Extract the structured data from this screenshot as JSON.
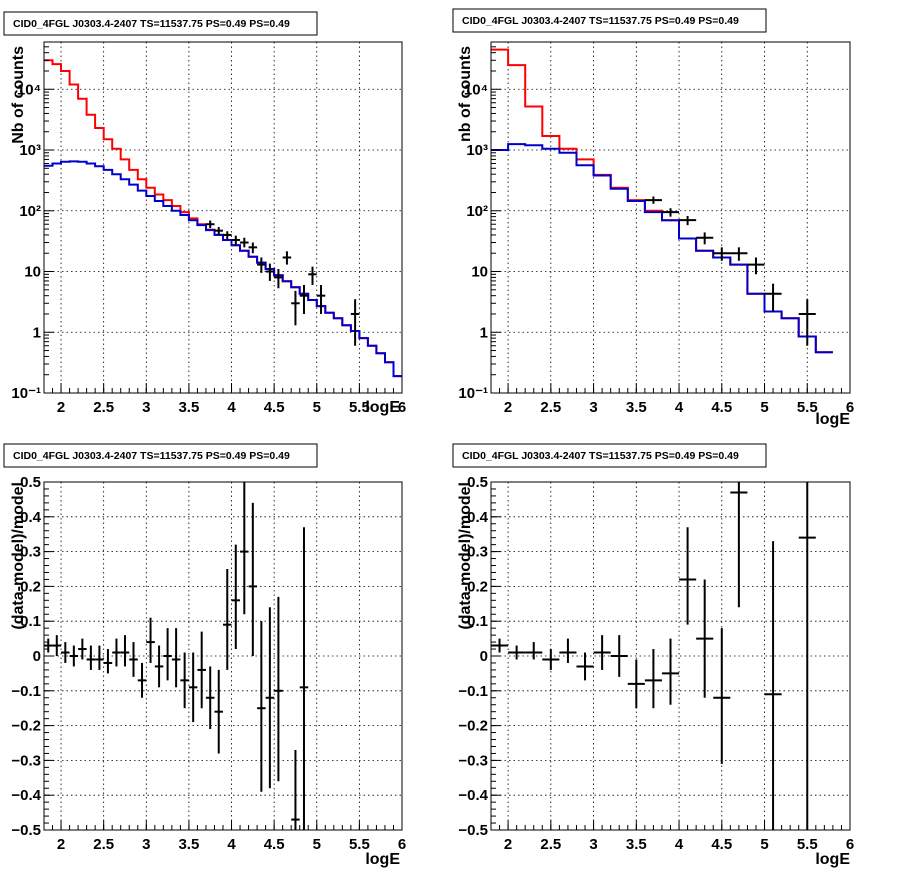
{
  "chart_data": [
    {
      "type": "histogram",
      "title": "CID0_4FGL J0303.4-2407 TS=11537.75 PS=0.49 PS=0.49",
      "xlabel": "logE",
      "ylabel": "Nb of counts",
      "xlim": [
        1.8,
        6.0
      ],
      "ylim": [
        0.1,
        60000
      ],
      "yscale": "log",
      "grid": true,
      "xticks": [
        {
          "v": 2,
          "t": "2"
        },
        {
          "v": 2.5,
          "t": "2.5"
        },
        {
          "v": 3,
          "t": "3"
        },
        {
          "v": 3.5,
          "t": "3.5"
        },
        {
          "v": 4,
          "t": "4"
        },
        {
          "v": 4.5,
          "t": "4.5"
        },
        {
          "v": 5,
          "t": "5"
        },
        {
          "v": 5.5,
          "t": "5.5"
        },
        {
          "v": 6,
          "t": "6"
        }
      ],
      "yticks": [
        {
          "v": 0.1,
          "t": "10⁻¹"
        },
        {
          "v": 1,
          "t": "1"
        },
        {
          "v": 10,
          "t": "10"
        },
        {
          "v": 100,
          "t": "10²"
        },
        {
          "v": 1000,
          "t": "10³"
        },
        {
          "v": 10000,
          "t": "10⁴"
        }
      ],
      "bin_edges": [
        1.8,
        1.9,
        2.0,
        2.1,
        2.2,
        2.3,
        2.4,
        2.5,
        2.6,
        2.7,
        2.8,
        2.9,
        3.0,
        3.1,
        3.2,
        3.3,
        3.4,
        3.5,
        3.6,
        3.7,
        3.8,
        3.9,
        4.0,
        4.1,
        4.2,
        4.3,
        4.4,
        4.5,
        4.6,
        4.7,
        4.8,
        4.9,
        5.0,
        5.1,
        5.2,
        5.3,
        5.4,
        5.5,
        5.6,
        5.7,
        5.8,
        5.9,
        6.0
      ],
      "series": [
        {
          "color": "#ff0000",
          "values": [
            30000,
            26000,
            20000,
            12000,
            7000,
            3800,
            2300,
            1500,
            1050,
            700,
            470,
            330,
            240,
            185,
            150,
            120,
            95,
            75,
            60,
            49,
            40,
            33,
            27,
            22,
            17.5,
            14,
            11,
            8.7,
            6.9,
            5.5,
            4.3,
            3.4,
            2.7,
            2.1,
            1.7,
            1.3,
            1.05,
            0.8,
            0.6,
            0.45,
            0.32,
            0.19
          ]
        },
        {
          "color": "#0000cc",
          "values": [
            550,
            600,
            640,
            650,
            640,
            600,
            540,
            470,
            400,
            330,
            270,
            215,
            175,
            145,
            120,
            100,
            85,
            70,
            58,
            48,
            40,
            33,
            27,
            22,
            17.5,
            14,
            11,
            8.7,
            6.9,
            5.5,
            4.3,
            3.4,
            2.7,
            2.1,
            1.7,
            1.3,
            1.05,
            0.8,
            0.6,
            0.45,
            0.32,
            0.19
          ]
        }
      ],
      "points": [
        {
          "x": 3.75,
          "y": 60,
          "lo": 52,
          "hi": 69
        },
        {
          "x": 3.85,
          "y": 47,
          "lo": 40,
          "hi": 54
        },
        {
          "x": 3.95,
          "y": 40,
          "lo": 34,
          "hi": 46
        },
        {
          "x": 4.05,
          "y": 33,
          "lo": 27,
          "hi": 39
        },
        {
          "x": 4.15,
          "y": 30,
          "lo": 25,
          "hi": 36
        },
        {
          "x": 4.25,
          "y": 25,
          "lo": 20,
          "hi": 30
        },
        {
          "x": 4.35,
          "y": 13,
          "lo": 9.5,
          "hi": 17
        },
        {
          "x": 4.45,
          "y": 10,
          "lo": 7,
          "hi": 13.5
        },
        {
          "x": 4.55,
          "y": 8,
          "lo": 5.3,
          "hi": 11
        },
        {
          "x": 4.65,
          "y": 17,
          "lo": 13,
          "hi": 21.5
        },
        {
          "x": 4.75,
          "y": 3,
          "lo": 1.3,
          "hi": 4.8
        },
        {
          "x": 4.85,
          "y": 4,
          "lo": 2,
          "hi": 6
        },
        {
          "x": 4.95,
          "y": 9,
          "lo": 6,
          "hi": 12
        },
        {
          "x": 5.05,
          "y": 4,
          "lo": 2,
          "hi": 6
        },
        {
          "x": 5.45,
          "y": 2,
          "lo": 0.6,
          "hi": 3.5
        }
      ]
    },
    {
      "type": "histogram",
      "title": "CID0_4FGL J0303.4-2407 TS=11537.75 PS=0.49 PS=0.49",
      "xlabel": "logE",
      "ylabel": "nb of counts",
      "xlim": [
        1.8,
        6.0
      ],
      "ylim": [
        0.1,
        60000
      ],
      "yscale": "log",
      "grid": true,
      "xticks": [
        {
          "v": 2,
          "t": "2"
        },
        {
          "v": 2.5,
          "t": "2.5"
        },
        {
          "v": 3,
          "t": "3"
        },
        {
          "v": 3.5,
          "t": "3.5"
        },
        {
          "v": 4,
          "t": "4"
        },
        {
          "v": 4.5,
          "t": "4.5"
        },
        {
          "v": 5,
          "t": "5"
        },
        {
          "v": 5.5,
          "t": "5.5"
        },
        {
          "v": 6,
          "t": "6"
        }
      ],
      "yticks": [
        {
          "v": 0.1,
          "t": "10⁻¹"
        },
        {
          "v": 1,
          "t": "1"
        },
        {
          "v": 10,
          "t": "10"
        },
        {
          "v": 100,
          "t": "10²"
        },
        {
          "v": 1000,
          "t": "10³"
        },
        {
          "v": 10000,
          "t": "10⁴"
        }
      ],
      "bin_edges": [
        1.8,
        2.0,
        2.2,
        2.4,
        2.6,
        2.8,
        3.0,
        3.2,
        3.4,
        3.6,
        3.8,
        4.0,
        4.2,
        4.4,
        4.6,
        4.8,
        5.0,
        5.2,
        5.4,
        5.6,
        5.8,
        6.0
      ],
      "series": [
        {
          "color": "#ff0000",
          "values": [
            45000,
            25000,
            5200,
            1700,
            1050,
            700,
            390,
            240,
            150,
            100,
            70,
            35,
            22,
            17,
            13,
            4.3,
            2.2,
            1.7,
            0.85,
            0.47
          ]
        },
        {
          "color": "#0000cc",
          "values": [
            1000,
            1250,
            1200,
            1050,
            900,
            560,
            380,
            230,
            145,
            95,
            70,
            35,
            22,
            17,
            13,
            4.3,
            2.2,
            1.7,
            0.85,
            0.47
          ]
        }
      ],
      "points": [
        {
          "x": 3.7,
          "y": 150,
          "lo": 130,
          "hi": 172
        },
        {
          "x": 3.9,
          "y": 95,
          "lo": 80,
          "hi": 110
        },
        {
          "x": 4.1,
          "y": 70,
          "lo": 58,
          "hi": 82
        },
        {
          "x": 4.3,
          "y": 36,
          "lo": 28,
          "hi": 44
        },
        {
          "x": 4.5,
          "y": 20,
          "lo": 15,
          "hi": 25
        },
        {
          "x": 4.7,
          "y": 20,
          "lo": 15,
          "hi": 25
        },
        {
          "x": 4.9,
          "y": 13,
          "lo": 9,
          "hi": 17
        },
        {
          "x": 5.1,
          "y": 4.3,
          "lo": 2.2,
          "hi": 6.3
        },
        {
          "x": 5.5,
          "y": 2,
          "lo": 0.6,
          "hi": 3.5
        }
      ]
    },
    {
      "type": "scatter",
      "title": "CID0_4FGL J0303.4-2407 TS=11537.75 PS=0.49 PS=0.49",
      "xlabel": "logE",
      "ylabel": "(data-model)/model",
      "xlim": [
        1.8,
        6.0
      ],
      "ylim": [
        -0.5,
        0.5
      ],
      "yscale": "linear",
      "grid": true,
      "xticks": [
        {
          "v": 2,
          "t": "2"
        },
        {
          "v": 2.5,
          "t": "2.5"
        },
        {
          "v": 3,
          "t": "3"
        },
        {
          "v": 3.5,
          "t": "3.5"
        },
        {
          "v": 4,
          "t": "4"
        },
        {
          "v": 4.5,
          "t": "4.5"
        },
        {
          "v": 5,
          "t": "5"
        },
        {
          "v": 5.5,
          "t": "5.5"
        },
        {
          "v": 6,
          "t": "6"
        }
      ],
      "yticks": [
        {
          "v": -0.5,
          "t": "−0.5"
        },
        {
          "v": -0.4,
          "t": "−0.4"
        },
        {
          "v": -0.3,
          "t": "−0.3"
        },
        {
          "v": -0.2,
          "t": "−0.2"
        },
        {
          "v": -0.1,
          "t": "−0.1"
        },
        {
          "v": 0,
          "t": "0"
        },
        {
          "v": 0.1,
          "t": "0.1"
        },
        {
          "v": 0.2,
          "t": "0.2"
        },
        {
          "v": 0.3,
          "t": "0.3"
        },
        {
          "v": 0.4,
          "t": "0.4"
        },
        {
          "v": 0.5,
          "t": "0.5"
        }
      ],
      "bin_width": 0.1,
      "points": [
        {
          "x": 1.85,
          "y": 0.03,
          "lo": 0.01,
          "hi": 0.05
        },
        {
          "x": 1.95,
          "y": 0.03,
          "lo": 0.0,
          "hi": 0.06
        },
        {
          "x": 2.05,
          "y": 0.01,
          "lo": -0.02,
          "hi": 0.04
        },
        {
          "x": 2.15,
          "y": 0.0,
          "lo": -0.03,
          "hi": 0.03
        },
        {
          "x": 2.25,
          "y": 0.02,
          "lo": -0.01,
          "hi": 0.05
        },
        {
          "x": 2.35,
          "y": -0.01,
          "lo": -0.04,
          "hi": 0.03
        },
        {
          "x": 2.45,
          "y": -0.01,
          "lo": -0.04,
          "hi": 0.03
        },
        {
          "x": 2.55,
          "y": -0.02,
          "lo": -0.05,
          "hi": 0.02
        },
        {
          "x": 2.65,
          "y": 0.01,
          "lo": -0.03,
          "hi": 0.05
        },
        {
          "x": 2.75,
          "y": 0.01,
          "lo": -0.03,
          "hi": 0.06
        },
        {
          "x": 2.85,
          "y": -0.01,
          "lo": -0.06,
          "hi": 0.04
        },
        {
          "x": 2.95,
          "y": -0.07,
          "lo": -0.12,
          "hi": -0.02
        },
        {
          "x": 3.05,
          "y": 0.04,
          "lo": -0.02,
          "hi": 0.11
        },
        {
          "x": 3.15,
          "y": -0.03,
          "lo": -0.09,
          "hi": 0.03
        },
        {
          "x": 3.25,
          "y": 0.0,
          "lo": -0.07,
          "hi": 0.08
        },
        {
          "x": 3.35,
          "y": -0.01,
          "lo": -0.09,
          "hi": 0.08
        },
        {
          "x": 3.45,
          "y": -0.07,
          "lo": -0.15,
          "hi": 0.01
        },
        {
          "x": 3.55,
          "y": -0.09,
          "lo": -0.19,
          "hi": 0.01
        },
        {
          "x": 3.65,
          "y": -0.04,
          "lo": -0.15,
          "hi": 0.07
        },
        {
          "x": 3.75,
          "y": -0.12,
          "lo": -0.21,
          "hi": -0.03
        },
        {
          "x": 3.85,
          "y": -0.16,
          "lo": -0.28,
          "hi": -0.04
        },
        {
          "x": 3.95,
          "y": 0.09,
          "lo": -0.04,
          "hi": 0.25
        },
        {
          "x": 4.05,
          "y": 0.16,
          "lo": 0.02,
          "hi": 0.32
        },
        {
          "x": 4.15,
          "y": 0.3,
          "lo": 0.12,
          "hi": 0.5
        },
        {
          "x": 4.25,
          "y": 0.2,
          "lo": 0.0,
          "hi": 0.44
        },
        {
          "x": 4.35,
          "y": -0.15,
          "lo": -0.39,
          "hi": 0.1
        },
        {
          "x": 4.45,
          "y": -0.12,
          "lo": -0.38,
          "hi": 0.14
        },
        {
          "x": 4.55,
          "y": -0.1,
          "lo": -0.36,
          "hi": 0.17
        },
        {
          "x": 4.75,
          "y": -0.47,
          "lo": -0.5,
          "hi": -0.27
        },
        {
          "x": 4.85,
          "y": -0.09,
          "lo": -0.5,
          "hi": 0.37
        }
      ]
    },
    {
      "type": "scatter",
      "title": "CID0_4FGL J0303.4-2407 TS=11537.75 PS=0.49 PS=0.49",
      "xlabel": "logE",
      "ylabel": "(data-model)/model",
      "xlim": [
        1.8,
        6.0
      ],
      "ylim": [
        -0.5,
        0.5
      ],
      "yscale": "linear",
      "grid": true,
      "xticks": [
        {
          "v": 2,
          "t": "2"
        },
        {
          "v": 2.5,
          "t": "2.5"
        },
        {
          "v": 3,
          "t": "3"
        },
        {
          "v": 3.5,
          "t": "3.5"
        },
        {
          "v": 4,
          "t": "4"
        },
        {
          "v": 4.5,
          "t": "4.5"
        },
        {
          "v": 5,
          "t": "5"
        },
        {
          "v": 5.5,
          "t": "5.5"
        },
        {
          "v": 6,
          "t": "6"
        }
      ],
      "yticks": [
        {
          "v": -0.5,
          "t": "−0.5"
        },
        {
          "v": -0.4,
          "t": "−0.4"
        },
        {
          "v": -0.3,
          "t": "−0.3"
        },
        {
          "v": -0.2,
          "t": "−0.2"
        },
        {
          "v": -0.1,
          "t": "−0.1"
        },
        {
          "v": 0,
          "t": "0"
        },
        {
          "v": 0.1,
          "t": "0.1"
        },
        {
          "v": 0.2,
          "t": "0.2"
        },
        {
          "v": 0.3,
          "t": "0.3"
        },
        {
          "v": 0.4,
          "t": "0.4"
        },
        {
          "v": 0.5,
          "t": "0.5"
        }
      ],
      "bin_width": 0.2,
      "points": [
        {
          "x": 1.9,
          "y": 0.03,
          "lo": 0.01,
          "hi": 0.05
        },
        {
          "x": 2.1,
          "y": 0.01,
          "lo": -0.01,
          "hi": 0.03
        },
        {
          "x": 2.3,
          "y": 0.01,
          "lo": -0.01,
          "hi": 0.04
        },
        {
          "x": 2.5,
          "y": -0.01,
          "lo": -0.04,
          "hi": 0.02
        },
        {
          "x": 2.7,
          "y": 0.01,
          "lo": -0.02,
          "hi": 0.05
        },
        {
          "x": 2.9,
          "y": -0.03,
          "lo": -0.07,
          "hi": 0.01
        },
        {
          "x": 3.1,
          "y": 0.01,
          "lo": -0.04,
          "hi": 0.06
        },
        {
          "x": 3.3,
          "y": 0.0,
          "lo": -0.06,
          "hi": 0.06
        },
        {
          "x": 3.5,
          "y": -0.08,
          "lo": -0.15,
          "hi": -0.01
        },
        {
          "x": 3.7,
          "y": -0.07,
          "lo": -0.15,
          "hi": 0.02
        },
        {
          "x": 3.9,
          "y": -0.05,
          "lo": -0.14,
          "hi": 0.05
        },
        {
          "x": 4.1,
          "y": 0.22,
          "lo": 0.09,
          "hi": 0.37
        },
        {
          "x": 4.3,
          "y": 0.05,
          "lo": -0.12,
          "hi": 0.22
        },
        {
          "x": 4.5,
          "y": -0.12,
          "lo": -0.31,
          "hi": 0.08
        },
        {
          "x": 4.7,
          "y": 0.47,
          "lo": 0.14,
          "hi": 0.5
        },
        {
          "x": 5.1,
          "y": -0.11,
          "lo": -0.5,
          "hi": 0.33
        },
        {
          "x": 5.5,
          "y": 0.34,
          "lo": -0.5,
          "hi": 0.5
        }
      ]
    }
  ]
}
